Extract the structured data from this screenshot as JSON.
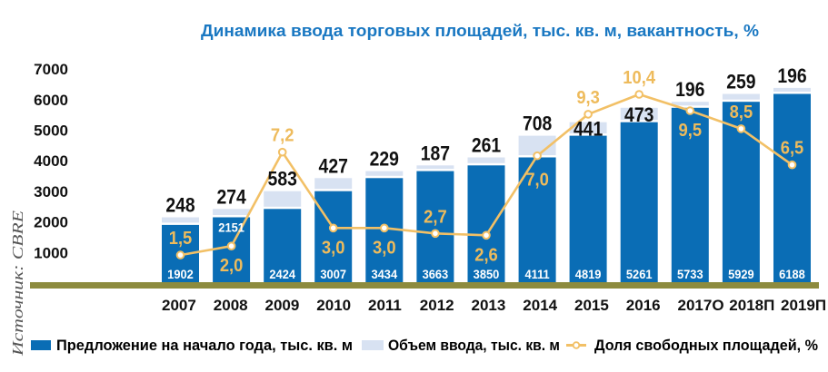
{
  "chart_data": {
    "type": "bar",
    "title": "Динамика ввода торговых площадей, тыс. кв. м, вакантность, %",
    "source": "Источник: CBRE",
    "xlabel": "",
    "ylabel": "",
    "ylim": [
      0,
      7000
    ],
    "yticks": [
      1000,
      2000,
      3000,
      4000,
      5000,
      6000,
      7000
    ],
    "ytick_labels": [
      "1000",
      "2000",
      "3000",
      "4000",
      "5000",
      "6000",
      "7000"
    ],
    "grid": false,
    "legend_position": "bottom",
    "categories": [
      "2007",
      "2008",
      "2009",
      "2010",
      "2011",
      "2012",
      "2013",
      "2014",
      "2015",
      "2016",
      "2017О",
      "2018П",
      "2019П"
    ],
    "series": [
      {
        "name": "Предложение на начало года, тыс. кв. м",
        "type": "bar",
        "color": "#0a6db5",
        "values": [
          1902,
          2151,
          2424,
          3007,
          3434,
          3663,
          3850,
          4111,
          4819,
          5261,
          5733,
          5929,
          6188
        ],
        "labels": [
          "1902",
          "2151",
          "2424",
          "3007",
          "3434",
          "3663",
          "3850",
          "4111",
          "4819",
          "5261",
          "5733",
          "5929",
          "6188"
        ],
        "label_positions": [
          "bottom",
          "top",
          "bottom",
          "bottom",
          "bottom",
          "bottom",
          "bottom",
          "bottom",
          "bottom",
          "bottom",
          "bottom",
          "bottom",
          "bottom"
        ]
      },
      {
        "name": "Объем ввода, тыс. кв. м",
        "type": "bar-stacked",
        "color": "#d8e2f2",
        "values": [
          248,
          274,
          583,
          427,
          229,
          187,
          261,
          708,
          441,
          473,
          196,
          259,
          196
        ],
        "labels": [
          "248",
          "274",
          "583",
          "427",
          "229",
          "187",
          "261",
          "708",
          "441",
          "473",
          "196",
          "259",
          "196"
        ],
        "label_positions": [
          "above",
          "above",
          "above",
          "above",
          "above",
          "above",
          "above",
          "above",
          "inside",
          "inside",
          "above",
          "above",
          "above"
        ]
      },
      {
        "name": "Доля свободных площадей, %",
        "type": "line",
        "color": "#f2c066",
        "axis": "secondary",
        "values": [
          1.5,
          2.0,
          7.2,
          3.0,
          3.0,
          2.7,
          2.6,
          7.0,
          9.3,
          10.4,
          9.5,
          8.5,
          6.5
        ],
        "labels": [
          "1,5",
          "2,0",
          "7,2",
          "3,0",
          "3,0",
          "2,7",
          "2,6",
          "7,0",
          "9,3",
          "10,4",
          "9,5",
          "8,5",
          "6,5"
        ],
        "label_positions": [
          "above",
          "below",
          "above",
          "below",
          "below",
          "above",
          "below",
          "below",
          "above",
          "above",
          "below",
          "above",
          "above"
        ]
      }
    ],
    "colors": {
      "title": "#1a78c2",
      "axis_band": "#8d8b3e",
      "vacancy_label": "#eebb5c",
      "text": "#111111",
      "source": "#555555"
    }
  }
}
